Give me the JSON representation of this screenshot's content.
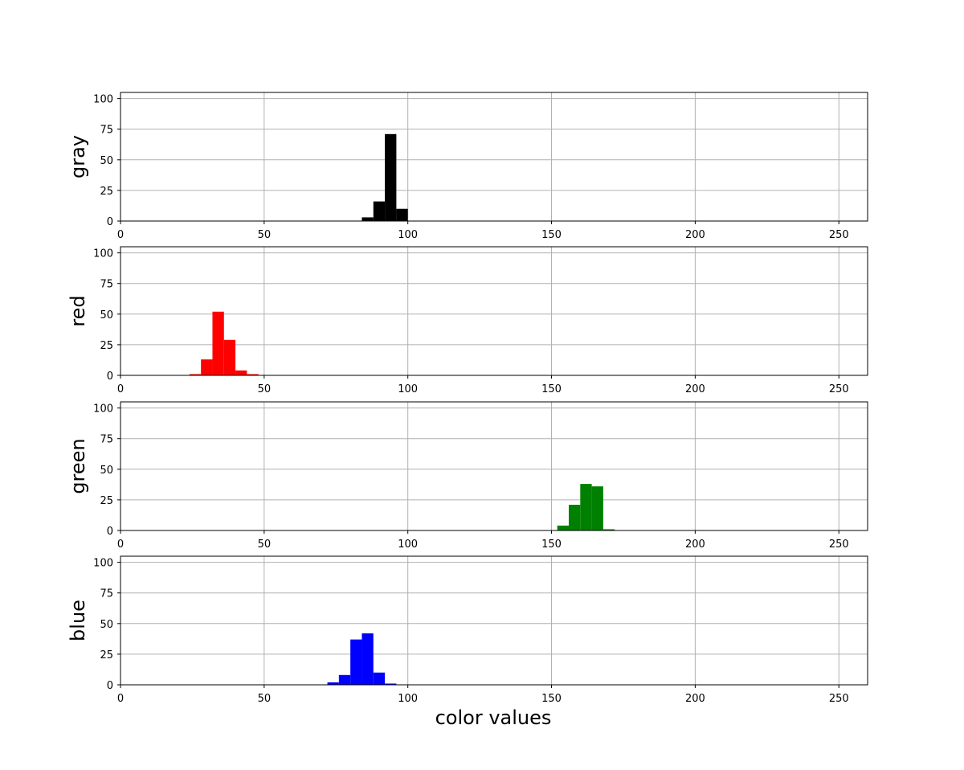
{
  "chart_data": [
    {
      "type": "bar",
      "ylabel": "gray",
      "color": "#000000",
      "xlim": [
        0,
        260
      ],
      "ylim": [
        0,
        105
      ],
      "xticks": [
        0,
        50,
        100,
        150,
        200,
        250
      ],
      "yticks": [
        0,
        25,
        50,
        75,
        100
      ],
      "grid": true,
      "bin_width": 4,
      "bins": [
        {
          "x": 84,
          "value": 3
        },
        {
          "x": 88,
          "value": 16
        },
        {
          "x": 92,
          "value": 71
        },
        {
          "x": 96,
          "value": 10
        }
      ]
    },
    {
      "type": "bar",
      "ylabel": "red",
      "color": "#ff0000",
      "xlim": [
        0,
        260
      ],
      "ylim": [
        0,
        105
      ],
      "xticks": [
        0,
        50,
        100,
        150,
        200,
        250
      ],
      "yticks": [
        0,
        25,
        50,
        75,
        100
      ],
      "grid": true,
      "bin_width": 4,
      "bins": [
        {
          "x": 24,
          "value": 1
        },
        {
          "x": 28,
          "value": 13
        },
        {
          "x": 32,
          "value": 52
        },
        {
          "x": 36,
          "value": 29
        },
        {
          "x": 40,
          "value": 4
        },
        {
          "x": 44,
          "value": 1
        }
      ]
    },
    {
      "type": "bar",
      "ylabel": "green",
      "color": "#008000",
      "xlim": [
        0,
        260
      ],
      "ylim": [
        0,
        105
      ],
      "xticks": [
        0,
        50,
        100,
        150,
        200,
        250
      ],
      "yticks": [
        0,
        25,
        50,
        75,
        100
      ],
      "grid": true,
      "bin_width": 4,
      "bins": [
        {
          "x": 152,
          "value": 4
        },
        {
          "x": 156,
          "value": 21
        },
        {
          "x": 160,
          "value": 38
        },
        {
          "x": 164,
          "value": 36
        },
        {
          "x": 168,
          "value": 1
        }
      ]
    },
    {
      "type": "bar",
      "ylabel": "blue",
      "color": "#0000ff",
      "xlim": [
        0,
        260
      ],
      "ylim": [
        0,
        105
      ],
      "xticks": [
        0,
        50,
        100,
        150,
        200,
        250
      ],
      "yticks": [
        0,
        25,
        50,
        75,
        100
      ],
      "grid": true,
      "bin_width": 4,
      "bins": [
        {
          "x": 72,
          "value": 2
        },
        {
          "x": 76,
          "value": 8
        },
        {
          "x": 80,
          "value": 37
        },
        {
          "x": 84,
          "value": 42
        },
        {
          "x": 88,
          "value": 10
        },
        {
          "x": 92,
          "value": 1
        }
      ]
    }
  ],
  "xlabel": "color values"
}
